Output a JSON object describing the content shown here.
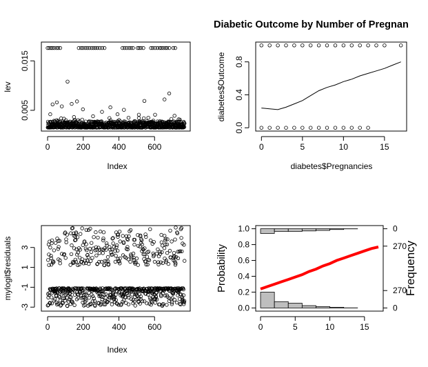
{
  "chart_data": [
    {
      "type": "scatter",
      "xlabel": "Index",
      "ylabel": "lev",
      "xlim": [
        -35,
        800
      ],
      "ylim": [
        0.0008,
        0.0188
      ],
      "x_ticks": [
        0,
        200,
        400,
        600
      ],
      "y_ticks": [
        0.005,
        0.015
      ],
      "y_tick_labels": [
        "0.005",
        "0.015"
      ],
      "n": 768,
      "typical_range": [
        0.0015,
        0.0028
      ],
      "top_band_value": 0.0176,
      "top_band_index_ranges": [
        [
          0,
          75
        ],
        [
          175,
          320
        ],
        [
          420,
          480
        ],
        [
          505,
          540
        ],
        [
          580,
          690
        ],
        [
          705,
          720
        ]
      ],
      "outliers": [
        {
          "x": 15,
          "y": 0.0042
        },
        {
          "x": 28,
          "y": 0.0062
        },
        {
          "x": 52,
          "y": 0.0066
        },
        {
          "x": 80,
          "y": 0.0058
        },
        {
          "x": 112,
          "y": 0.0108
        },
        {
          "x": 135,
          "y": 0.0063
        },
        {
          "x": 165,
          "y": 0.0068
        },
        {
          "x": 198,
          "y": 0.0052
        },
        {
          "x": 255,
          "y": 0.0038
        },
        {
          "x": 305,
          "y": 0.0047
        },
        {
          "x": 352,
          "y": 0.0056
        },
        {
          "x": 392,
          "y": 0.0042
        },
        {
          "x": 428,
          "y": 0.0051
        },
        {
          "x": 454,
          "y": 0.0035
        },
        {
          "x": 512,
          "y": 0.0041
        },
        {
          "x": 543,
          "y": 0.0069
        },
        {
          "x": 603,
          "y": 0.0041
        },
        {
          "x": 656,
          "y": 0.0072
        },
        {
          "x": 682,
          "y": 0.0084
        },
        {
          "x": 712,
          "y": 0.0039
        },
        {
          "x": 742,
          "y": 0.0031
        }
      ]
    },
    {
      "type": "scatter",
      "title": "Diabetic Outcome by Number of Pregnan",
      "xlabel": "diabetes$Pregnancies",
      "ylabel": "diabetes$Outcome",
      "xlim": [
        -0.7,
        17.7
      ],
      "ylim": [
        -0.04,
        1.04
      ],
      "x_ticks": [
        0,
        5,
        10,
        15
      ],
      "y_ticks": [
        0.0,
        0.4,
        0.8
      ],
      "y_tick_labels": [
        "0.0",
        "0.4",
        "0.8"
      ],
      "outcome_0_pregnancies": [
        0,
        1,
        2,
        3,
        4,
        5,
        6,
        7,
        8,
        9,
        10,
        11,
        12,
        13
      ],
      "outcome_1_pregnancies": [
        0,
        1,
        2,
        3,
        4,
        5,
        6,
        7,
        8,
        9,
        10,
        11,
        12,
        13,
        14,
        15,
        17
      ],
      "smooth_line": {
        "x": [
          0,
          1,
          2,
          3,
          4,
          5,
          6,
          7,
          8,
          9,
          10,
          11,
          12,
          13,
          14,
          15,
          16,
          17
        ],
        "y": [
          0.24,
          0.23,
          0.22,
          0.25,
          0.29,
          0.33,
          0.39,
          0.45,
          0.49,
          0.52,
          0.56,
          0.59,
          0.63,
          0.66,
          0.69,
          0.72,
          0.76,
          0.8
        ]
      }
    },
    {
      "type": "scatter",
      "xlabel": "Index",
      "ylabel": "mylogit$residuals",
      "xlim": [
        -35,
        800
      ],
      "ylim": [
        -3.4,
        5.2
      ],
      "x_ticks": [
        0,
        200,
        400,
        600
      ],
      "y_ticks": [
        -3,
        -1,
        1,
        3
      ],
      "y_tick_labels": [
        "-3",
        "-1",
        "1",
        "3"
      ],
      "n": 768,
      "negative_band": [
        -1.1,
        -2.9
      ],
      "positive_band": [
        1.2,
        5.0
      ]
    },
    {
      "type": "bar",
      "subtype": "logistic-curve-with-histograms",
      "xlim": [
        -0.7,
        17.7
      ],
      "ylim": [
        -0.04,
        1.04
      ],
      "x_ticks": [
        0,
        5,
        10,
        15
      ],
      "ylabel": "Probability",
      "y_ticks": [
        0.0,
        0.2,
        0.4,
        0.6,
        0.8,
        1.0
      ],
      "y_tick_labels": [
        "0.0",
        "0.2",
        "0.4",
        "0.6",
        "0.8",
        "1.0"
      ],
      "ylabel_right": "Frequency",
      "right_ticks_top": [
        "0",
        "270"
      ],
      "right_ticks_bottom": [
        "270",
        "0"
      ],
      "bin_edges": [
        0,
        2,
        4,
        6,
        8,
        10,
        12,
        14
      ],
      "outcome_0_counts": [
        246,
        98,
        74,
        36,
        21,
        11,
        2
      ],
      "outcome_1_counts": [
        73,
        41,
        41,
        34,
        26,
        12,
        2
      ],
      "curve_color": "#ff0000",
      "curve": {
        "x": [
          0,
          1,
          2,
          3,
          4,
          5,
          6,
          7,
          8,
          9,
          10,
          11,
          12,
          13,
          14,
          15,
          16,
          17
        ],
        "y": [
          0.24,
          0.27,
          0.3,
          0.33,
          0.36,
          0.39,
          0.42,
          0.46,
          0.49,
          0.53,
          0.56,
          0.6,
          0.63,
          0.66,
          0.69,
          0.72,
          0.75,
          0.77
        ]
      }
    }
  ]
}
